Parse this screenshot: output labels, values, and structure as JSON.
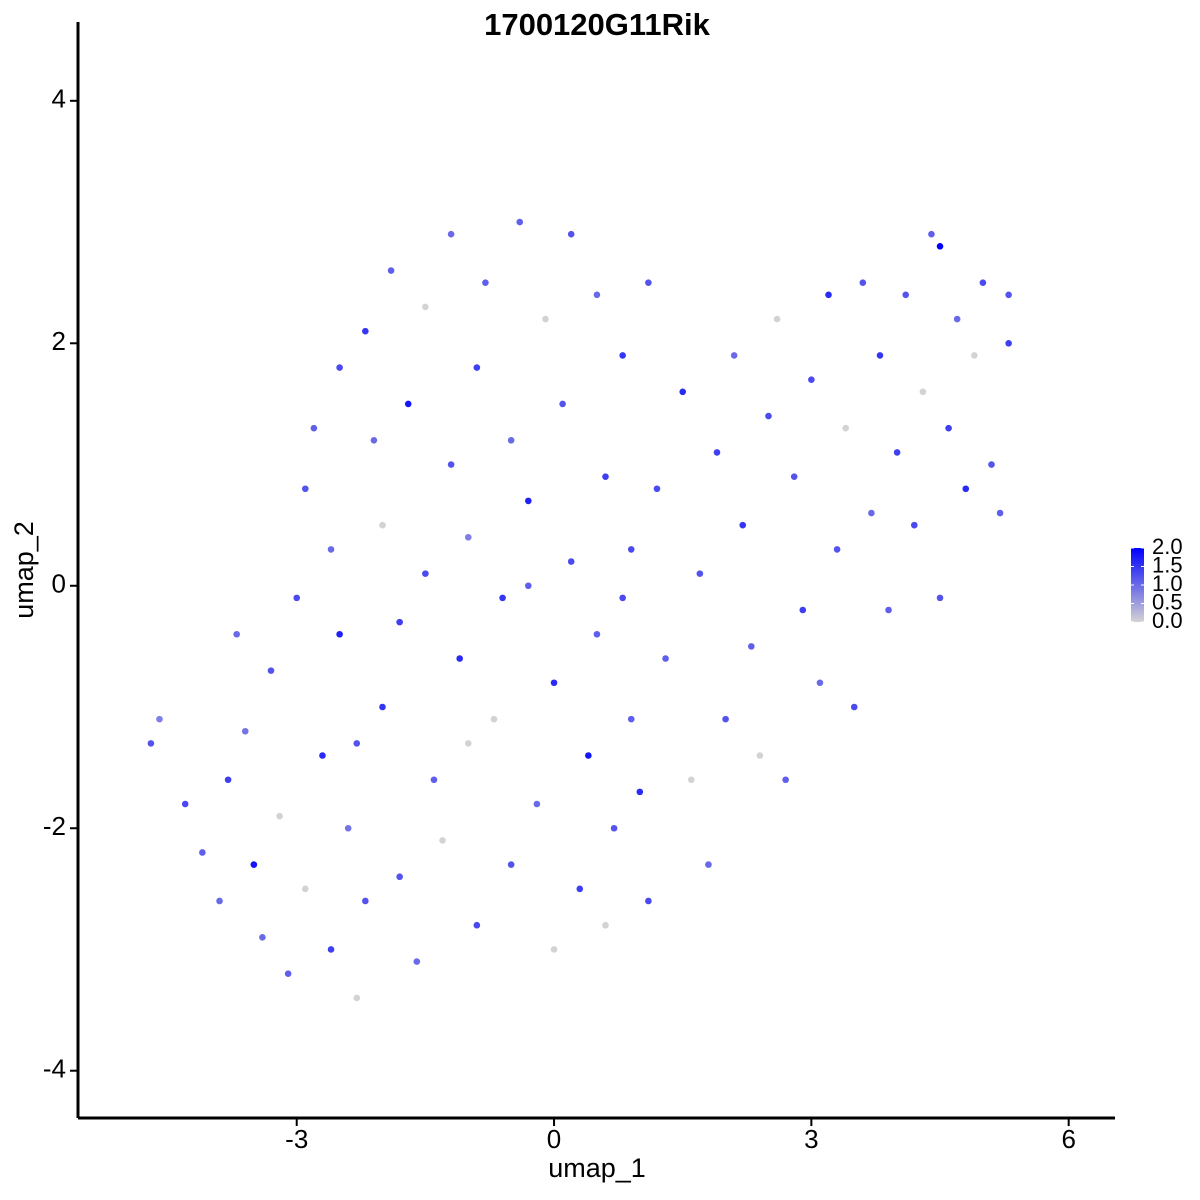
{
  "chart_data": {
    "type": "scatter",
    "title": "1700120G11Rik",
    "x_label": "umap_1",
    "y_label": "umap_2",
    "xlim": [
      -5.55,
      6.54
    ],
    "xticks": [
      -3,
      0,
      3,
      6
    ],
    "ylim": [
      -4.39,
      4.65
    ],
    "yticks": [
      -4,
      -2,
      0,
      2,
      4
    ],
    "color_low": "#d3d3d3",
    "color_high": "#0000ff",
    "clim": [
      0,
      2
    ],
    "cticks": [
      {
        "value": 0,
        "label": "0.0"
      },
      {
        "value": 0.5,
        "label": "0.5"
      },
      {
        "value": 1,
        "label": "1.0"
      },
      {
        "value": 1.5,
        "label": "1.5"
      },
      {
        "value": 2,
        "label": "2.0"
      }
    ],
    "x": [
      -4.7,
      -4.6,
      -4.3,
      -4.1,
      -3.9,
      -3.8,
      -3.6,
      -3.5,
      -3.4,
      -3.3,
      -3.2,
      -3.1,
      -3.0,
      -2.9,
      -2.9,
      -2.8,
      -2.7,
      -2.6,
      -2.6,
      -2.5,
      -2.5,
      -2.4,
      -2.3,
      -2.2,
      -2.2,
      -2.1,
      -2.0,
      -2.0,
      -1.9,
      -1.8,
      -1.8,
      -1.7,
      -1.6,
      -1.5,
      -1.5,
      -1.4,
      -1.3,
      -1.2,
      -1.2,
      -1.1,
      -1.0,
      -0.9,
      -0.9,
      -0.8,
      -0.7,
      -0.6,
      -0.5,
      -0.5,
      -0.4,
      -0.3,
      -0.2,
      -0.1,
      0.0,
      0.0,
      0.1,
      0.2,
      0.2,
      0.3,
      0.4,
      0.5,
      0.5,
      0.6,
      0.6,
      0.7,
      0.8,
      0.9,
      0.9,
      1.0,
      1.1,
      1.1,
      1.2,
      1.3,
      1.5,
      1.6,
      1.7,
      1.8,
      1.9,
      2.0,
      2.1,
      2.2,
      2.3,
      2.4,
      2.5,
      2.6,
      2.7,
      2.8,
      2.9,
      3.0,
      3.1,
      3.2,
      3.3,
      3.4,
      3.5,
      3.6,
      3.7,
      3.8,
      3.9,
      4.0,
      4.1,
      4.2,
      4.3,
      4.4,
      4.5,
      4.5,
      4.6,
      4.7,
      4.8,
      4.9,
      5.0,
      5.1,
      5.2,
      5.3,
      5.3,
      0.8,
      -3.7,
      -2.3,
      -1.0,
      -0.3
    ],
    "y": [
      -1.3,
      -1.1,
      -1.8,
      -2.2,
      -2.6,
      -1.6,
      -1.2,
      -2.3,
      -2.9,
      -0.7,
      -1.9,
      -3.2,
      -0.1,
      -2.5,
      0.8,
      1.3,
      -1.4,
      -3.0,
      0.3,
      1.8,
      -0.4,
      -2.0,
      -3.4,
      2.1,
      -2.6,
      1.2,
      -1.0,
      0.5,
      2.6,
      -2.4,
      -0.3,
      1.5,
      -3.1,
      2.3,
      0.1,
      -1.6,
      -2.1,
      1.0,
      2.9,
      -0.6,
      0.4,
      -2.8,
      1.8,
      2.5,
      -1.1,
      -0.1,
      1.2,
      -2.3,
      3.0,
      0.7,
      -1.8,
      2.2,
      -0.8,
      -3.0,
      1.5,
      0.2,
      2.9,
      -2.5,
      -1.4,
      -0.4,
      2.4,
      0.9,
      -2.8,
      -2.0,
      1.9,
      -1.1,
      0.3,
      -1.7,
      2.5,
      -2.6,
      0.8,
      -0.6,
      1.6,
      -1.6,
      0.1,
      -2.3,
      1.1,
      -1.1,
      1.9,
      0.5,
      -0.5,
      -1.4,
      1.4,
      2.2,
      -1.6,
      0.9,
      -0.2,
      1.7,
      -0.8,
      2.4,
      0.3,
      1.3,
      -1.0,
      2.5,
      0.6,
      1.9,
      -0.2,
      1.1,
      2.4,
      0.5,
      1.6,
      2.9,
      -0.1,
      2.8,
      1.3,
      2.2,
      0.8,
      1.9,
      2.5,
      1.0,
      0.6,
      2.0,
      2.4,
      -0.1,
      -0.4,
      -1.3,
      -1.3,
      0.0
    ],
    "color_values": [
      1.2,
      0.8,
      1.3,
      1.1,
      1.0,
      1.4,
      0.9,
      1.8,
      1.0,
      1.2,
      0.0,
      1.1,
      1.3,
      0.0,
      1.2,
      1.1,
      1.6,
      1.4,
      1.0,
      1.3,
      1.7,
      0.9,
      0.0,
      1.5,
      1.2,
      1.0,
      1.5,
      0.0,
      1.1,
      1.2,
      1.4,
      1.8,
      1.0,
      0.0,
      1.3,
      1.1,
      0.0,
      1.2,
      1.0,
      1.6,
      0.8,
      1.3,
      1.4,
      1.1,
      0.0,
      1.5,
      1.0,
      1.2,
      1.1,
      1.7,
      1.0,
      0.0,
      1.6,
      0.0,
      1.2,
      1.3,
      1.2,
      1.4,
      1.8,
      1.1,
      1.0,
      1.4,
      0.0,
      1.2,
      1.5,
      1.1,
      1.3,
      1.6,
      1.2,
      1.3,
      1.3,
      1.1,
      1.6,
      0.0,
      1.2,
      1.0,
      1.4,
      1.2,
      1.0,
      1.5,
      1.1,
      0.0,
      1.3,
      0.0,
      1.1,
      1.2,
      1.4,
      1.3,
      1.0,
      1.6,
      1.2,
      0.0,
      1.3,
      1.2,
      1.0,
      1.5,
      1.1,
      1.4,
      1.2,
      1.3,
      0.0,
      1.1,
      1.2,
      2.0,
      1.4,
      1.0,
      1.6,
      0.0,
      1.3,
      1.2,
      1.1,
      1.4,
      1.2,
      1.3,
      1.0,
      1.2,
      0.0,
      1.1
    ]
  }
}
